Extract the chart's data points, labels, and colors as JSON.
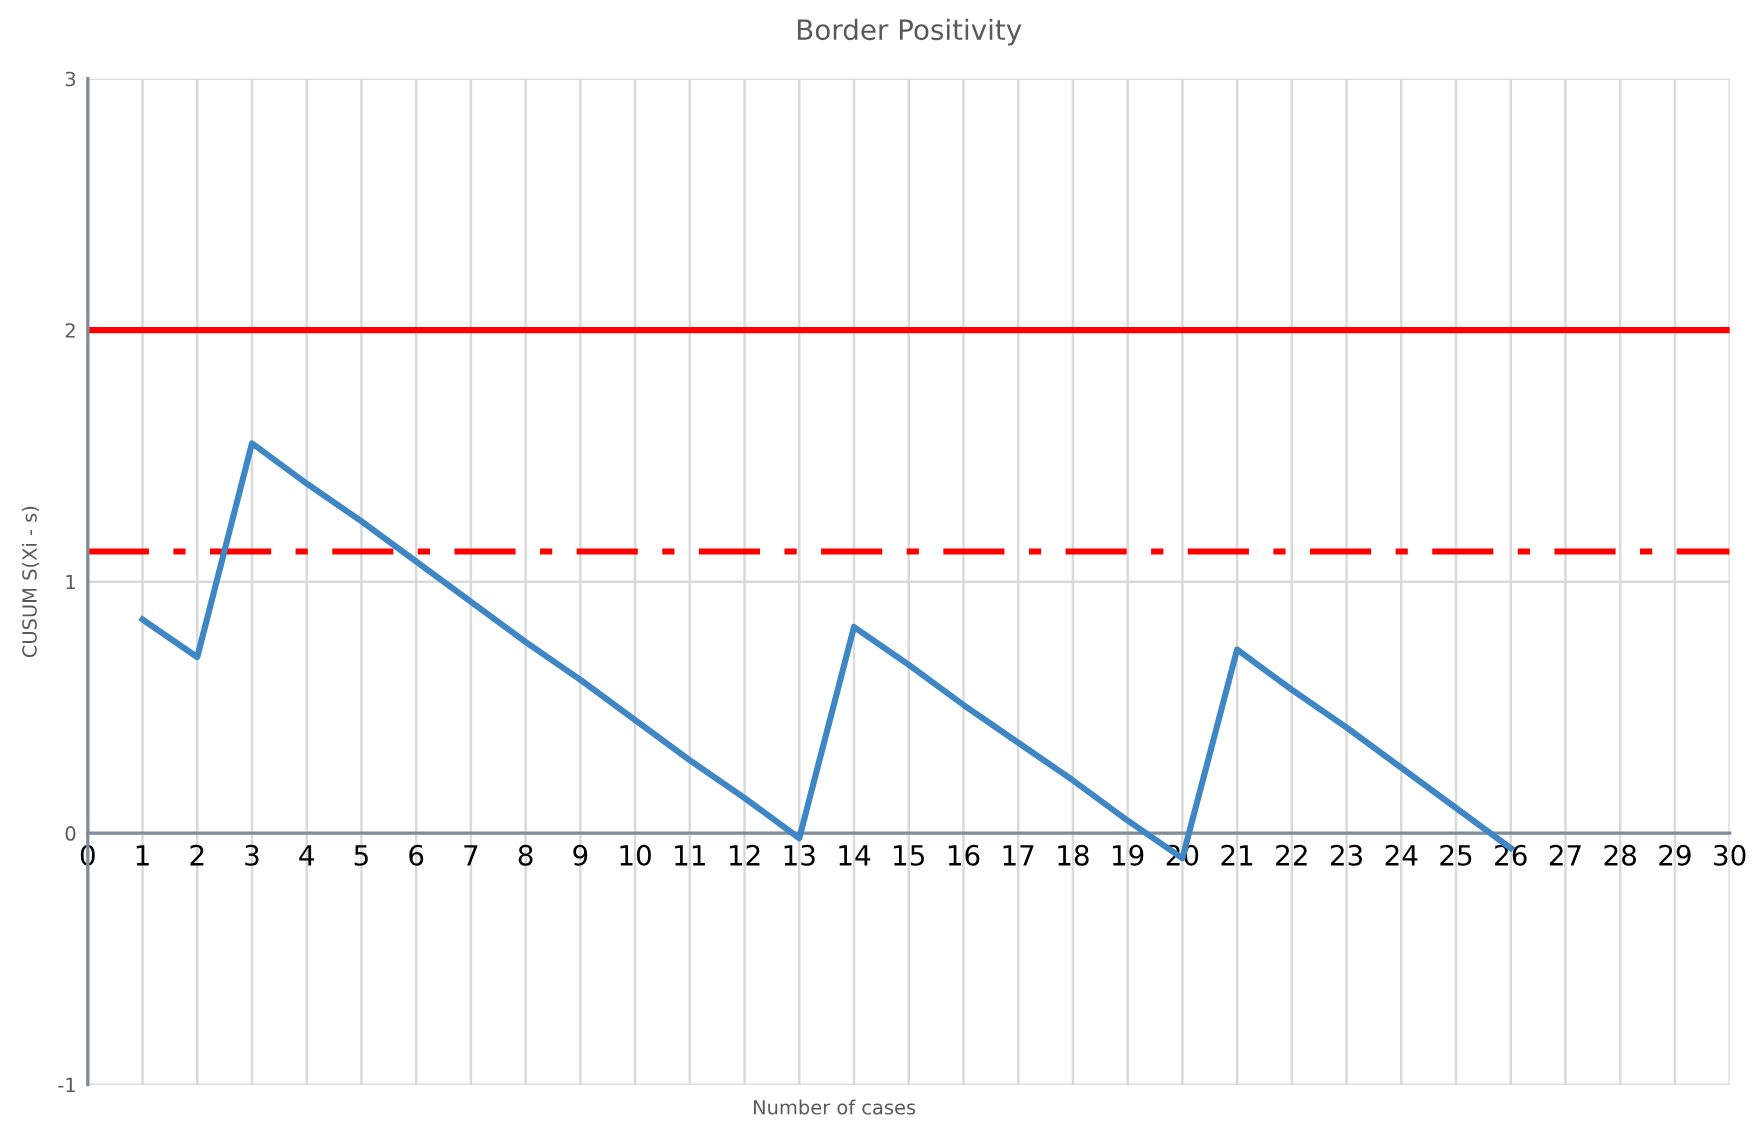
{
  "chart_data": {
    "type": "line",
    "title": "Border Positivity",
    "xlabel": "Number of cases",
    "ylabel": "CUSUM S(Xi - s)",
    "x": [
      1,
      2,
      3,
      4,
      5,
      6,
      7,
      8,
      9,
      10,
      11,
      12,
      13,
      14,
      15,
      16,
      17,
      18,
      19,
      20,
      21,
      22,
      23,
      24,
      25,
      26
    ],
    "series": [
      {
        "color": "#3f86c4",
        "values": [
          0.85,
          0.7,
          1.55,
          1.39,
          1.24,
          1.08,
          0.92,
          0.76,
          0.61,
          0.45,
          0.29,
          0.14,
          -0.02,
          0.82,
          0.67,
          0.51,
          0.36,
          0.21,
          0.05,
          -0.1,
          0.73,
          0.57,
          0.42,
          0.26,
          0.1,
          -0.06
        ]
      }
    ],
    "xlim": [
      0,
      30
    ],
    "xticks": [
      0,
      1,
      2,
      3,
      4,
      5,
      6,
      7,
      8,
      9,
      10,
      11,
      12,
      13,
      14,
      15,
      16,
      17,
      18,
      19,
      20,
      21,
      22,
      23,
      24,
      25,
      26,
      27,
      28,
      29,
      30
    ],
    "ylim": [
      -1,
      3
    ],
    "yticks": [
      -1,
      0,
      1,
      2,
      3
    ],
    "grid": true,
    "marker": "none",
    "line_style": "solid",
    "ref_lines": [
      {
        "axis": "y",
        "value": 2,
        "color": "#ff0000",
        "line_style": "solid"
      },
      {
        "axis": "y",
        "value": 1.12,
        "color": "#ff0000",
        "line_style": "dashdot"
      }
    ]
  }
}
